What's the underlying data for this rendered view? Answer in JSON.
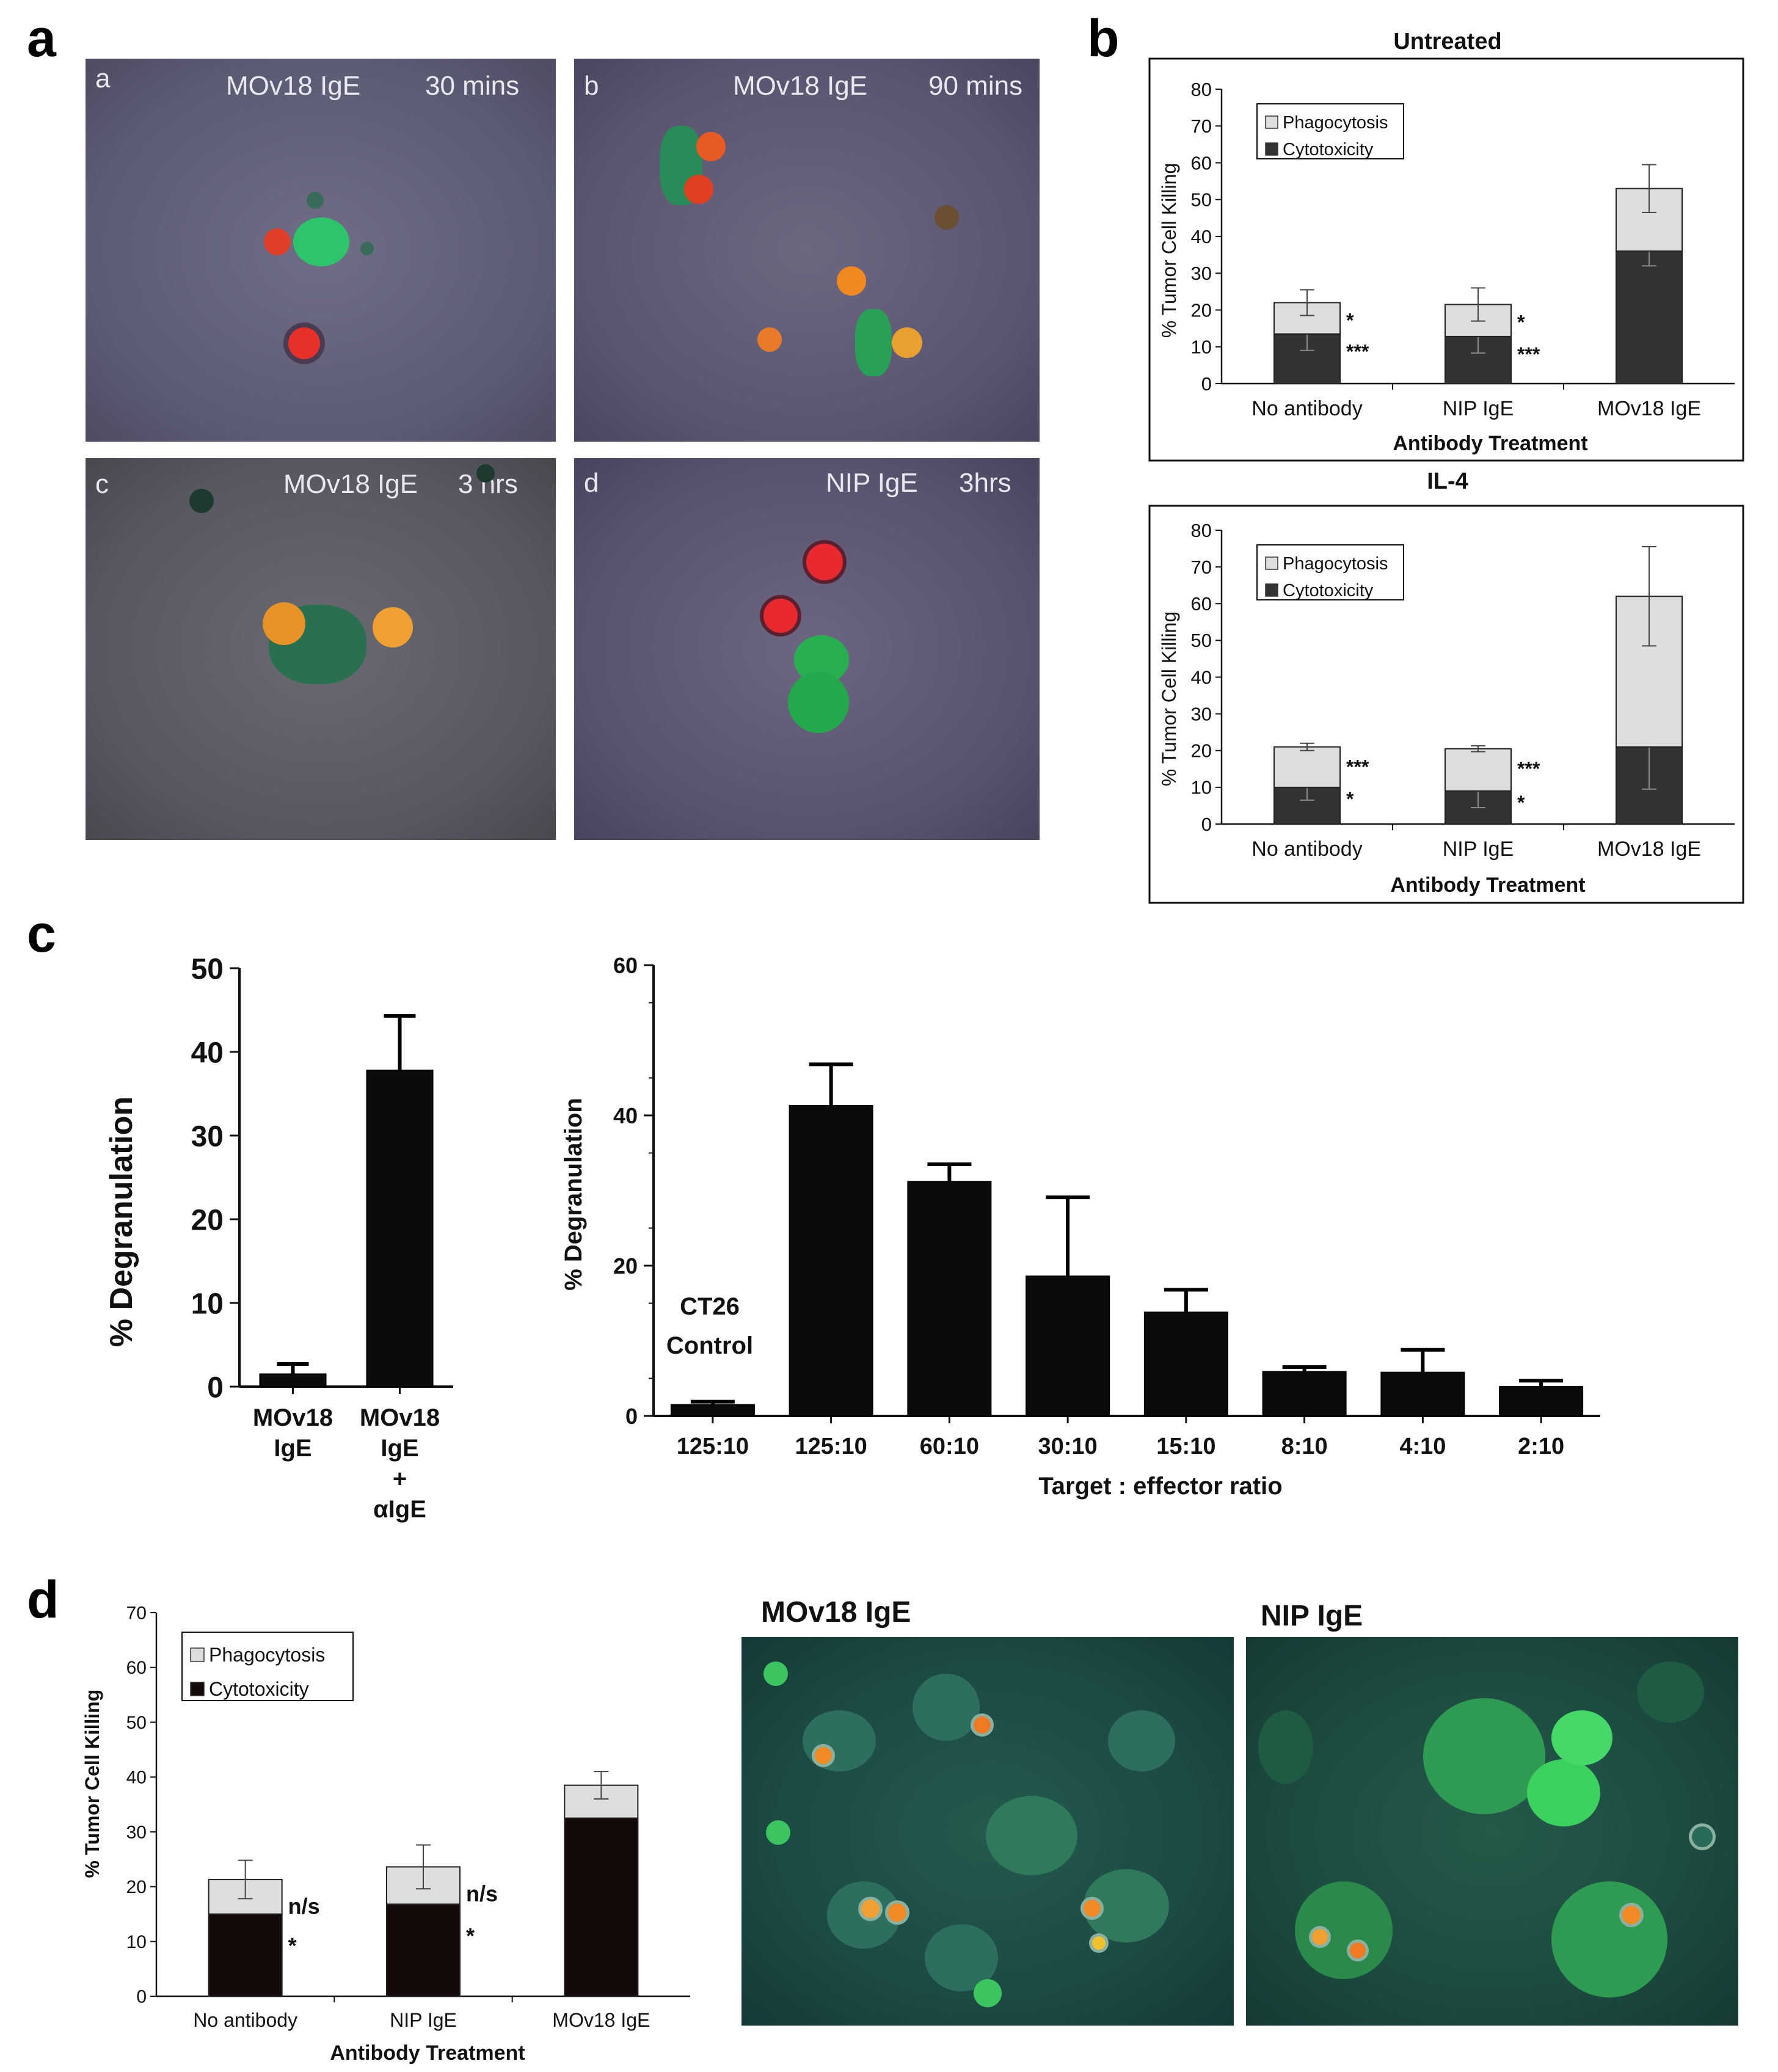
{
  "letters": {
    "a": "a",
    "b": "b",
    "c": "c",
    "d": "d"
  },
  "panel_a": [
    {
      "sub": "a",
      "label": "MOv18 IgE",
      "time": "30 mins"
    },
    {
      "sub": "b",
      "label": "MOv18 IgE",
      "time": "90 mins"
    },
    {
      "sub": "c",
      "label": "MOv18 IgE",
      "time": "3 hrs"
    },
    {
      "sub": "d",
      "label": "NIP IgE",
      "time": "3hrs"
    }
  ],
  "panel_d_images": {
    "left_title": "MOv18 IgE",
    "right_title": "NIP IgE"
  },
  "chart_data": [
    {
      "id": "b_untreated",
      "type": "bar",
      "stacked": true,
      "title": "Untreated",
      "xlabel": "Antibody Treatment",
      "ylabel": "% Tumor Cell Killing",
      "ylim": [
        0,
        80
      ],
      "yticks": [
        0,
        10,
        20,
        30,
        40,
        50,
        60,
        70,
        80
      ],
      "categories": [
        "No antibody",
        "NIP IgE",
        "MOv18 IgE"
      ],
      "series": [
        {
          "name": "Cytotoxicity",
          "values": [
            13.5,
            12.8,
            36
          ],
          "errors": [
            4.5,
            4.5,
            4
          ],
          "color": "#333333"
        },
        {
          "name": "Phagocytosis",
          "values": [
            8.5,
            8.7,
            17
          ],
          "errors": [
            3.5,
            4.5,
            6.5
          ],
          "color": "#dddddd"
        }
      ],
      "annotations": [
        {
          "category": "No antibody",
          "upper": "*",
          "lower": "***"
        },
        {
          "category": "NIP IgE",
          "upper": "*",
          "lower": "***"
        }
      ],
      "legend": "top-left"
    },
    {
      "id": "b_il4",
      "type": "bar",
      "stacked": true,
      "title": "IL-4",
      "xlabel": "Antibody Treatment",
      "ylabel": "% Tumor Cell Killing",
      "ylim": [
        0,
        80
      ],
      "yticks": [
        0,
        10,
        20,
        30,
        40,
        50,
        60,
        70,
        80
      ],
      "categories": [
        "No antibody",
        "NIP IgE",
        "MOv18 IgE"
      ],
      "series": [
        {
          "name": "Cytotoxicity",
          "values": [
            10,
            9,
            21
          ],
          "errors": [
            3.5,
            4.5,
            11.5
          ],
          "color": "#333333"
        },
        {
          "name": "Phagocytosis",
          "values": [
            11,
            11.5,
            41
          ],
          "errors": [
            1,
            0.8,
            13.5
          ],
          "color": "#dddddd"
        }
      ],
      "annotations": [
        {
          "category": "No antibody",
          "upper": "***",
          "lower": "*"
        },
        {
          "category": "NIP IgE",
          "upper": "***",
          "lower": "*"
        }
      ],
      "legend": "top-left"
    },
    {
      "id": "c_left",
      "type": "bar",
      "ylabel": "% Degranulation",
      "ylim": [
        0,
        50
      ],
      "yticks": [
        0,
        10,
        20,
        30,
        40,
        50
      ],
      "categories": [
        [
          "MOv18",
          "IgE"
        ],
        [
          "MOv18",
          "IgE",
          "+",
          "αIgE"
        ]
      ],
      "values": [
        1.5,
        37.8
      ],
      "errors": [
        1.2,
        6.5
      ]
    },
    {
      "id": "c_right",
      "type": "bar",
      "xlabel": "Target : effector ratio",
      "ylabel": "% Degranulation",
      "ylim": [
        0,
        60
      ],
      "yticks": [
        0,
        20,
        40,
        60
      ],
      "categories": [
        "125:10",
        "125:10",
        "60:10",
        "30:10",
        "15:10",
        "8:10",
        "4:10",
        "2:10"
      ],
      "values": [
        1.5,
        41.3,
        31.2,
        18.6,
        13.8,
        5.9,
        5.8,
        3.9
      ],
      "errors": [
        0.4,
        5.5,
        2.3,
        10.5,
        3,
        0.6,
        3,
        0.8
      ],
      "annotation": [
        "CT26",
        "Control"
      ]
    },
    {
      "id": "d_chart",
      "type": "bar",
      "stacked": true,
      "xlabel": "Antibody Treatment",
      "ylabel": "% Tumor Cell Killing",
      "ylim": [
        0,
        70
      ],
      "yticks": [
        0,
        10,
        20,
        30,
        40,
        50,
        60,
        70
      ],
      "categories": [
        "No antibody",
        "NIP IgE",
        "MOv18 IgE"
      ],
      "series": [
        {
          "name": "Cytotoxicity",
          "values": [
            15,
            16.8,
            32.5
          ],
          "errors": [
            0,
            0,
            0
          ],
          "color": "#140a0a"
        },
        {
          "name": "Phagocytosis",
          "values": [
            6.3,
            6.8,
            6
          ],
          "errors": [
            3.5,
            4,
            2.5
          ],
          "color": "#dddddd"
        }
      ],
      "annotations": [
        {
          "category": "No antibody",
          "upper": "n/s",
          "lower": "*"
        },
        {
          "category": "NIP IgE",
          "upper": "n/s",
          "lower": "*"
        }
      ],
      "legend": "top-left"
    }
  ]
}
